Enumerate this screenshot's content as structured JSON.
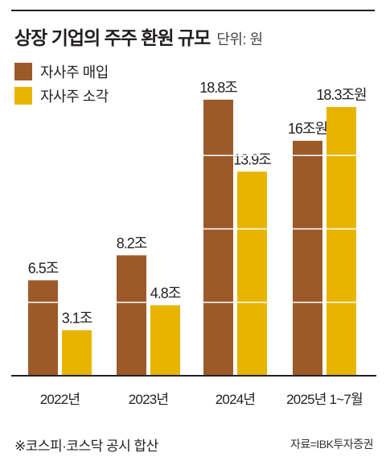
{
  "header": {
    "title": "상장 기업의 주주 환원 규모",
    "unit": "단위: 원"
  },
  "colors": {
    "buyback": "#9c5a2a",
    "cancel": "#e7b400",
    "grid": "#ffffff",
    "axis": "#231f20"
  },
  "chart_data": {
    "type": "bar",
    "title": "상장 기업의 주주 환원 규모",
    "subtitle": "단위: 원",
    "categories": [
      "2022년",
      "2023년",
      "2024년",
      "2025년 1~7월"
    ],
    "series": [
      {
        "name": "자사주 매입",
        "values": [
          6.5,
          8.2,
          18.8,
          16.0
        ],
        "labels": [
          "6.5조",
          "8.2조",
          "18.8조",
          "16조원"
        ]
      },
      {
        "name": "자사주 소각",
        "values": [
          3.1,
          4.8,
          13.9,
          18.3
        ],
        "labels": [
          "3.1조",
          "4.8조",
          "13.9조",
          "18.3조원"
        ]
      }
    ],
    "unit": "조원",
    "ylim": [
      0,
      20
    ],
    "grid": true,
    "legend": "top-left"
  },
  "footer": {
    "note": "※코스피·코스닥 공시 합산",
    "source": "자료=IBK투자증권"
  }
}
